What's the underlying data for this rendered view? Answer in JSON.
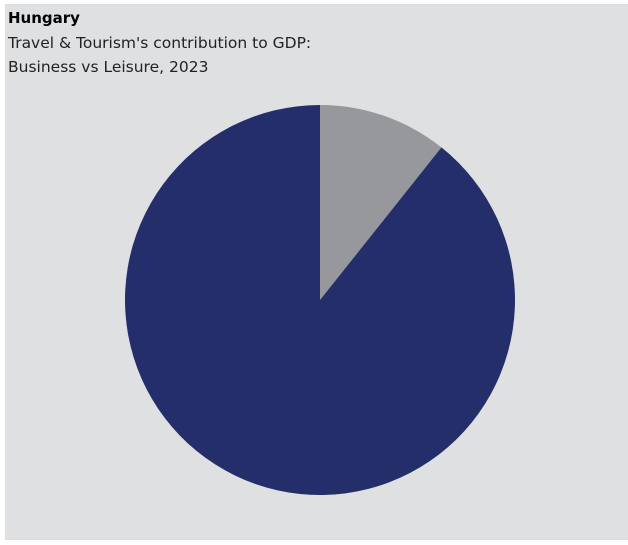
{
  "chart_data": {
    "type": "pie",
    "title": "Hungary",
    "subtitle_lines": [
      "Travel & Tourism's contribution to GDP:",
      "Business vs Leisure, 2023"
    ],
    "slices": [
      {
        "value": 10.7,
        "color": "#97989b"
      },
      {
        "value": 89.3,
        "color": "#232e6b"
      }
    ],
    "legend": "none"
  }
}
